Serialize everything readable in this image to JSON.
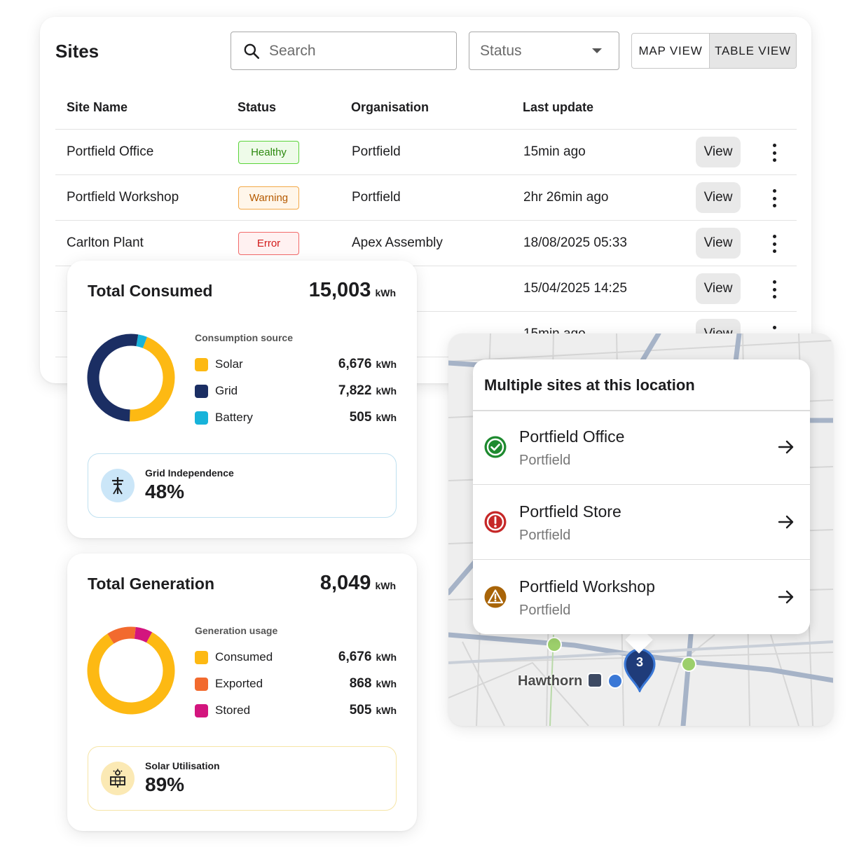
{
  "sites": {
    "title": "Sites",
    "search_placeholder": "Search",
    "status_placeholder": "Status",
    "view_toggle": {
      "map": "MAP VIEW",
      "table": "TABLE VIEW",
      "active": "table"
    },
    "columns": [
      "Site Name",
      "Status",
      "Organisation",
      "Last update"
    ],
    "rows": [
      {
        "name": "Portfield Office",
        "status": "Healthy",
        "organisation": "Portfield",
        "last_update": "15min ago",
        "action": "View"
      },
      {
        "name": "Portfield Workshop",
        "status": "Warning",
        "organisation": "Portfield",
        "last_update": "2hr 26min ago",
        "action": "View"
      },
      {
        "name": "Carlton Plant",
        "status": "Error",
        "organisation": "Apex Assembly",
        "last_update": "18/08/2025 05:33",
        "action": "View"
      },
      {
        "name": "",
        "status": "",
        "organisation": "",
        "last_update": "15/04/2025 14:25",
        "action": "View"
      },
      {
        "name": "",
        "status": "",
        "organisation": "",
        "last_update": "15min ago",
        "action": "View"
      }
    ]
  },
  "consumed": {
    "title": "Total Consumed",
    "total": "15,003",
    "unit": "kWh",
    "legend_title": "Consumption source",
    "items": [
      {
        "label": "Solar",
        "value": "6,676",
        "unit": "kWh",
        "color": "#FDB913"
      },
      {
        "label": "Grid",
        "value": "7,822",
        "unit": "kWh",
        "color": "#1B2E63"
      },
      {
        "label": "Battery",
        "value": "505",
        "unit": "kWh",
        "color": "#17B3DA"
      }
    ],
    "donut_values": [
      6676,
      7822,
      505
    ],
    "metric_label": "Grid Independence",
    "metric_value": "48%",
    "metric_icon": "power-pole-icon"
  },
  "generation": {
    "title": "Total Generation",
    "total": "8,049",
    "unit": "kWh",
    "legend_title": "Generation usage",
    "items": [
      {
        "label": "Consumed",
        "value": "6,676",
        "unit": "kWh",
        "color": "#FDB913"
      },
      {
        "label": "Exported",
        "value": "868",
        "unit": "kWh",
        "color": "#F26A2E"
      },
      {
        "label": "Stored",
        "value": "505",
        "unit": "kWh",
        "color": "#D3157E"
      }
    ],
    "donut_values": [
      6676,
      868,
      505
    ],
    "metric_label": "Solar Utilisation",
    "metric_value": "89%",
    "metric_icon": "solar-panel-icon"
  },
  "map": {
    "popup_title": "Multiple sites at this location",
    "sites": [
      {
        "name": "Portfield Office",
        "org": "Portfield",
        "status": "healthy",
        "icon": "check-circle-icon",
        "color": "#1E8A2F"
      },
      {
        "name": "Portfield Store",
        "org": "Portfield",
        "status": "error",
        "icon": "alert-circle-icon",
        "color": "#C62828"
      },
      {
        "name": "Portfield Workshop",
        "org": "Portfield",
        "status": "warning",
        "icon": "warning-triangle-icon",
        "color": "#A86408"
      }
    ],
    "place_label": "Hawthorn",
    "cluster_count": "3",
    "cluster_color": "#1F3C7A"
  }
}
